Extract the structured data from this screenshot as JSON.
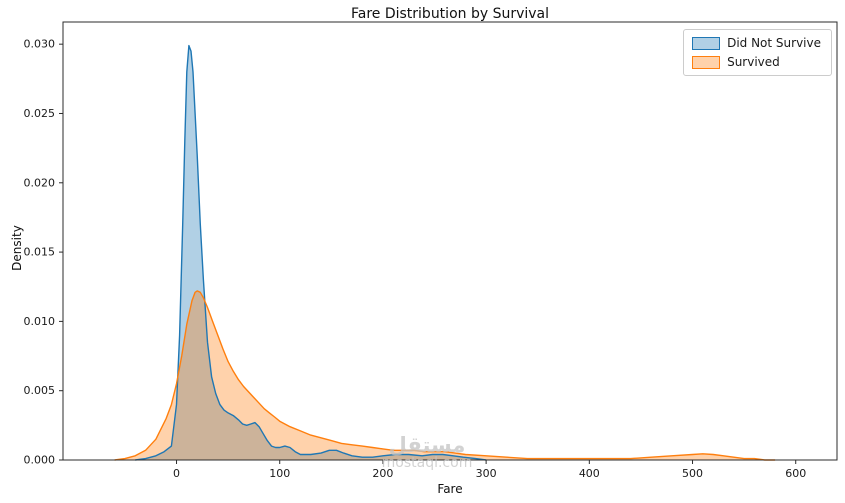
{
  "figure": {
    "title": "Fare Distribution by Survival",
    "xlabel": "Fare",
    "ylabel": "Density"
  },
  "legend": {
    "items": [
      {
        "label": "Did Not Survive"
      },
      {
        "label": "Survived"
      }
    ]
  },
  "watermark": {
    "line1": "مستقل",
    "line2": "mostaql.com"
  },
  "chart_data": {
    "type": "area",
    "title": "Fare Distribution by Survival",
    "xlabel": "Fare",
    "ylabel": "Density",
    "legend_position": "upper right",
    "grid": false,
    "xlim": [
      -110,
      640
    ],
    "ylim": [
      0,
      0.0316
    ],
    "x_tick_values": [
      0,
      100,
      200,
      300,
      400,
      500,
      600
    ],
    "x_tick_labels": [
      "0",
      "100",
      "200",
      "300",
      "400",
      "500",
      "600"
    ],
    "y_tick_values": [
      0,
      0.005,
      0.01,
      0.015,
      0.02,
      0.025,
      0.03
    ],
    "y_tick_labels": [
      "0.000",
      "0.005",
      "0.010",
      "0.015",
      "0.020",
      "0.025",
      "0.030"
    ],
    "series": [
      {
        "name": "Did Not Survive",
        "color": "#1f77b4",
        "fill_opacity": 0.35,
        "points": [
          [
            -40,
            0
          ],
          [
            -30,
            0.0001
          ],
          [
            -20,
            0.0003
          ],
          [
            -12,
            0.0006
          ],
          [
            -5,
            0.001
          ],
          [
            0,
            0.004
          ],
          [
            3,
            0.009
          ],
          [
            6,
            0.017
          ],
          [
            8,
            0.023
          ],
          [
            10,
            0.028
          ],
          [
            12,
            0.0299
          ],
          [
            14,
            0.0295
          ],
          [
            16,
            0.028
          ],
          [
            18,
            0.025
          ],
          [
            20,
            0.022
          ],
          [
            23,
            0.017
          ],
          [
            26,
            0.013
          ],
          [
            30,
            0.0085
          ],
          [
            34,
            0.006
          ],
          [
            38,
            0.0048
          ],
          [
            42,
            0.004
          ],
          [
            46,
            0.0036
          ],
          [
            50,
            0.0034
          ],
          [
            55,
            0.0032
          ],
          [
            60,
            0.0029
          ],
          [
            64,
            0.0026
          ],
          [
            68,
            0.0025
          ],
          [
            72,
            0.0026
          ],
          [
            76,
            0.0027
          ],
          [
            80,
            0.0024
          ],
          [
            84,
            0.0019
          ],
          [
            88,
            0.0014
          ],
          [
            92,
            0.001
          ],
          [
            96,
            0.0009
          ],
          [
            100,
            0.0009
          ],
          [
            105,
            0.001
          ],
          [
            110,
            0.0009
          ],
          [
            115,
            0.0006
          ],
          [
            120,
            0.0004
          ],
          [
            130,
            0.0004
          ],
          [
            140,
            0.0005
          ],
          [
            148,
            0.0007
          ],
          [
            155,
            0.0007
          ],
          [
            162,
            0.0005
          ],
          [
            170,
            0.0003
          ],
          [
            180,
            0.0002
          ],
          [
            190,
            0.0002
          ],
          [
            200,
            0.0003
          ],
          [
            212,
            0.0004
          ],
          [
            225,
            0.0004
          ],
          [
            238,
            0.0003
          ],
          [
            248,
            0.0004
          ],
          [
            258,
            0.0004
          ],
          [
            268,
            0.0003
          ],
          [
            278,
            0.0002
          ],
          [
            290,
            0.0001
          ],
          [
            300,
            0
          ]
        ]
      },
      {
        "name": "Survived",
        "color": "#ff7f0e",
        "fill_opacity": 0.35,
        "points": [
          [
            -60,
            0
          ],
          [
            -50,
            0.0001
          ],
          [
            -40,
            0.0003
          ],
          [
            -30,
            0.0007
          ],
          [
            -20,
            0.0015
          ],
          [
            -10,
            0.003
          ],
          [
            -5,
            0.004
          ],
          [
            0,
            0.0055
          ],
          [
            5,
            0.0075
          ],
          [
            10,
            0.0098
          ],
          [
            15,
            0.0115
          ],
          [
            18,
            0.0121
          ],
          [
            20,
            0.0122
          ],
          [
            23,
            0.0121
          ],
          [
            26,
            0.0117
          ],
          [
            30,
            0.011
          ],
          [
            35,
            0.01
          ],
          [
            40,
            0.009
          ],
          [
            45,
            0.008
          ],
          [
            50,
            0.0071
          ],
          [
            55,
            0.0064
          ],
          [
            60,
            0.0058
          ],
          [
            65,
            0.0053
          ],
          [
            70,
            0.0049
          ],
          [
            75,
            0.0045
          ],
          [
            80,
            0.0041
          ],
          [
            85,
            0.0037
          ],
          [
            90,
            0.0034
          ],
          [
            95,
            0.0031
          ],
          [
            100,
            0.0028
          ],
          [
            110,
            0.0024
          ],
          [
            120,
            0.0021
          ],
          [
            130,
            0.0018
          ],
          [
            140,
            0.0016
          ],
          [
            150,
            0.0014
          ],
          [
            160,
            0.0012
          ],
          [
            170,
            0.0011
          ],
          [
            180,
            0.001
          ],
          [
            190,
            0.0009
          ],
          [
            200,
            0.0008
          ],
          [
            210,
            0.0007
          ],
          [
            220,
            0.0007
          ],
          [
            230,
            0.0007
          ],
          [
            240,
            0.0006
          ],
          [
            250,
            0.0006
          ],
          [
            260,
            0.0006
          ],
          [
            270,
            0.0005
          ],
          [
            280,
            0.0004
          ],
          [
            300,
            0.0003
          ],
          [
            320,
            0.0002
          ],
          [
            340,
            0.0001
          ],
          [
            360,
            0.0001
          ],
          [
            380,
            0.0001
          ],
          [
            400,
            0.0001
          ],
          [
            420,
            0.0001
          ],
          [
            440,
            0.0001
          ],
          [
            460,
            0.0002
          ],
          [
            480,
            0.0003
          ],
          [
            500,
            0.0004
          ],
          [
            510,
            0.00045
          ],
          [
            520,
            0.0004
          ],
          [
            530,
            0.0003
          ],
          [
            540,
            0.0002
          ],
          [
            550,
            0.0001
          ],
          [
            560,
            0.0001
          ],
          [
            570,
            0
          ],
          [
            580,
            0
          ]
        ]
      }
    ]
  }
}
